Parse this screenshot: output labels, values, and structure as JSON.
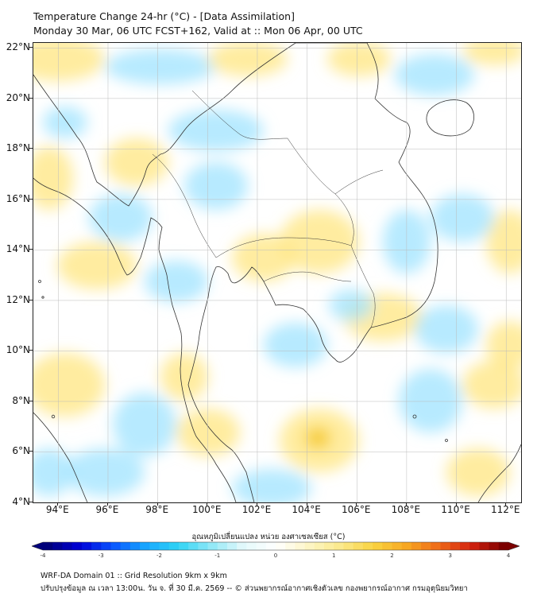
{
  "title": {
    "line1": "Temperature Change 24-hr (°C) - [Data Assimilation]",
    "line2": "Monday 30 Mar, 06 UTC FCST+162, Valid at :: Mon 06 Apr, 00 UTC"
  },
  "map": {
    "lat_labels": [
      "22°N",
      "20°N",
      "18°N",
      "16°N",
      "14°N",
      "12°N",
      "10°N",
      "8°N",
      "6°N",
      "4°N"
    ],
    "lon_labels": [
      "94°E",
      "96°E",
      "98°E",
      "100°E",
      "102°E",
      "104°E",
      "106°E",
      "108°E",
      "110°E",
      "112°E"
    ],
    "lat_range": [
      4,
      22.2
    ],
    "lon_range": [
      93,
      112.6
    ],
    "gridlines": true,
    "land_color": "#ffffff",
    "warm_color": "#ffe680",
    "cool_color": "#9fe3ff"
  },
  "colorbar": {
    "label": "อุณหภูมิเปลี่ยนแปลง หน่วย องศาเซลเซียส (°C)",
    "ticks": [
      "-4",
      "-3",
      "-2",
      "-1",
      "0",
      "1",
      "2",
      "3",
      "4"
    ],
    "min": -4,
    "max": 4,
    "colors": [
      "#00007a",
      "#0000d8",
      "#0a55ff",
      "#17a6ff",
      "#2fd4f5",
      "#8fe8f7",
      "#e4f9fb",
      "#ffffff",
      "#fdf6c6",
      "#fbe98b",
      "#f9d341",
      "#f7a822",
      "#ef6b18",
      "#d42310",
      "#7b0000"
    ]
  },
  "footer": {
    "line1": "WRF-DA Domain 01 :: Grid Resolution 9km x 9km",
    "line2": "ปรับปรุงข้อมูล ณ เวลา 13:00น. วัน จ. ที่ 30 มี.ค. 2569 -- © ส่วนพยากรณ์อากาศเชิงตัวเลข กองพยากรณ์อากาศ กรมอุตุนิยมวิทยา"
  }
}
